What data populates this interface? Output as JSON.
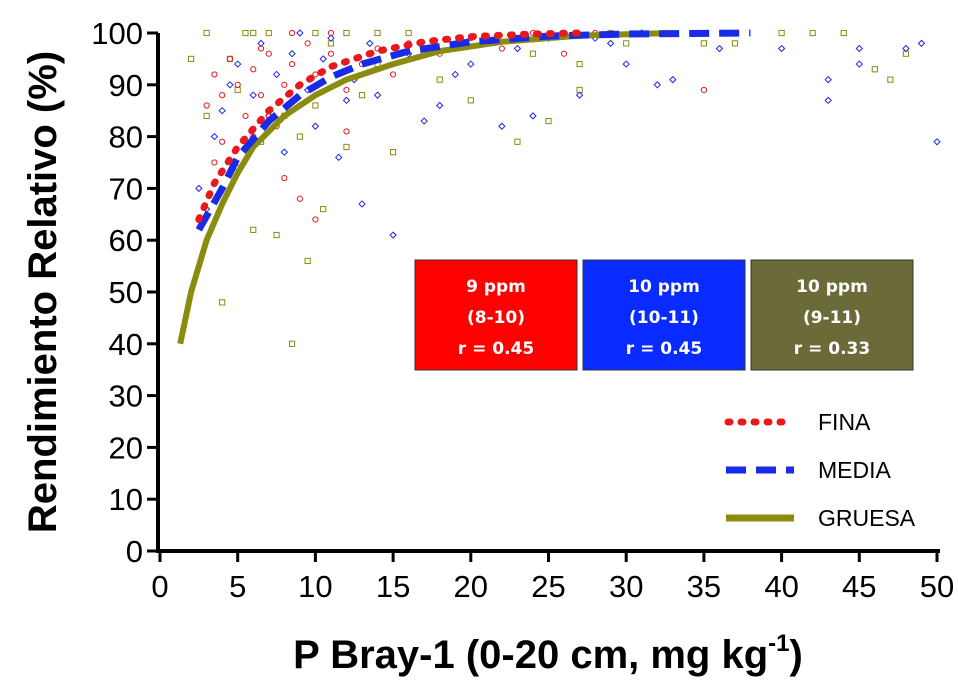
{
  "chart_data": {
    "type": "scatter",
    "xlabel_main": "P Bray-1 (0-20 cm, mg kg",
    "xlabel_sup": "-1",
    "xlabel_end": ")",
    "ylabel": "Rendimiento Relativo (%)",
    "xlim": [
      0,
      50
    ],
    "ylim": [
      0,
      100
    ],
    "x_ticks": [
      "0",
      "5",
      "10",
      "15",
      "20",
      "25",
      "30",
      "35",
      "40",
      "45",
      "50"
    ],
    "y_ticks": [
      "0",
      "10",
      "20",
      "30",
      "40",
      "50",
      "60",
      "70",
      "80",
      "90",
      "100"
    ],
    "grid": false,
    "legend_position": "lower-right",
    "series": [
      {
        "name": "FINA",
        "color": "#e8191d",
        "marker": "circle",
        "line_style": "dotted",
        "curve": [
          [
            2.5,
            64
          ],
          [
            3.5,
            71
          ],
          [
            5,
            78
          ],
          [
            7,
            85
          ],
          [
            9,
            90
          ],
          [
            11,
            93.5
          ],
          [
            14,
            96.5
          ],
          [
            17,
            98.3
          ],
          [
            20,
            99.3
          ],
          [
            24,
            99.8
          ],
          [
            27,
            100
          ]
        ],
        "points": [
          [
            3,
            86
          ],
          [
            3.5,
            92
          ],
          [
            4,
            88
          ],
          [
            4.5,
            95
          ],
          [
            5,
            90
          ],
          [
            5.5,
            84
          ],
          [
            6,
            93
          ],
          [
            6.5,
            88
          ],
          [
            7,
            96
          ],
          [
            7.5,
            82
          ],
          [
            8,
            90
          ],
          [
            8.5,
            94
          ],
          [
            9,
            86
          ],
          [
            9.5,
            98
          ],
          [
            10,
            92
          ],
          [
            11,
            96
          ],
          [
            12,
            89
          ],
          [
            13,
            94
          ],
          [
            14,
            97
          ],
          [
            15,
            92
          ],
          [
            16,
            98
          ],
          [
            18,
            96
          ],
          [
            20,
            99
          ],
          [
            22,
            97
          ],
          [
            24,
            100
          ],
          [
            26,
            96
          ],
          [
            28,
            100
          ],
          [
            35,
            89
          ],
          [
            4,
            79
          ],
          [
            6,
            80
          ],
          [
            8,
            72
          ],
          [
            9,
            68
          ],
          [
            10,
            64
          ],
          [
            5,
            74
          ],
          [
            7,
            84
          ],
          [
            12,
            81
          ],
          [
            3.5,
            75
          ],
          [
            6.5,
            97
          ],
          [
            8.5,
            100
          ],
          [
            11,
            100
          ]
        ]
      },
      {
        "name": "MEDIA",
        "color": "#1a2be8",
        "marker": "diamond",
        "line_style": "dashed",
        "curve": [
          [
            2.5,
            62
          ],
          [
            4,
            70
          ],
          [
            5,
            76
          ],
          [
            7,
            83
          ],
          [
            9,
            88
          ],
          [
            11,
            91.5
          ],
          [
            13,
            94
          ],
          [
            16,
            96.5
          ],
          [
            20,
            98.3
          ],
          [
            25,
            99.4
          ],
          [
            30,
            99.8
          ],
          [
            38,
            100
          ]
        ],
        "points": [
          [
            2.5,
            70
          ],
          [
            3,
            66
          ],
          [
            3.5,
            80
          ],
          [
            4,
            85
          ],
          [
            4.5,
            90
          ],
          [
            5,
            94
          ],
          [
            5.5,
            78
          ],
          [
            6,
            88
          ],
          [
            6.5,
            98
          ],
          [
            7,
            84
          ],
          [
            7.5,
            92
          ],
          [
            8,
            77
          ],
          [
            8.5,
            96
          ],
          [
            9,
            100
          ],
          [
            9.5,
            89
          ],
          [
            10,
            82
          ],
          [
            10.5,
            95
          ],
          [
            11,
            99
          ],
          [
            11.5,
            76
          ],
          [
            12,
            87
          ],
          [
            12.5,
            91
          ],
          [
            13,
            67
          ],
          [
            13.5,
            98
          ],
          [
            14,
            88
          ],
          [
            15,
            61
          ],
          [
            16,
            96
          ],
          [
            17,
            83
          ],
          [
            18,
            86
          ],
          [
            19,
            92
          ],
          [
            20,
            94
          ],
          [
            21,
            98
          ],
          [
            22,
            82
          ],
          [
            23,
            97
          ],
          [
            24,
            84
          ],
          [
            25,
            99
          ],
          [
            26,
            100
          ],
          [
            27,
            88
          ],
          [
            28,
            99
          ],
          [
            30,
            94
          ],
          [
            32,
            90
          ],
          [
            33,
            91
          ],
          [
            36,
            97
          ],
          [
            40,
            97
          ],
          [
            43,
            87
          ],
          [
            43,
            91
          ],
          [
            45,
            94
          ],
          [
            45,
            97
          ],
          [
            48,
            97
          ],
          [
            49,
            98
          ],
          [
            50,
            79
          ],
          [
            29,
            98
          ],
          [
            31,
            100
          ]
        ]
      },
      {
        "name": "GRUESA",
        "color": "#8b8b10",
        "marker": "square",
        "line_style": "solid",
        "curve": [
          [
            1.3,
            40
          ],
          [
            2,
            50
          ],
          [
            3,
            60
          ],
          [
            4,
            67
          ],
          [
            5,
            73
          ],
          [
            6,
            78
          ],
          [
            8,
            84
          ],
          [
            10,
            88
          ],
          [
            12,
            91
          ],
          [
            15,
            94
          ],
          [
            18,
            96.5
          ],
          [
            22,
            98.3
          ],
          [
            27,
            99.5
          ],
          [
            33,
            100
          ]
        ],
        "points": [
          [
            2,
            95
          ],
          [
            3,
            84
          ],
          [
            4,
            48
          ],
          [
            4.5,
            95
          ],
          [
            5,
            89
          ],
          [
            5.5,
            100
          ],
          [
            6,
            62
          ],
          [
            6.5,
            79
          ],
          [
            7,
            100
          ],
          [
            7.5,
            61
          ],
          [
            8,
            84
          ],
          [
            8.5,
            40
          ],
          [
            9,
            80
          ],
          [
            9.5,
            56
          ],
          [
            10,
            86
          ],
          [
            10.5,
            66
          ],
          [
            11,
            98
          ],
          [
            12,
            78
          ],
          [
            13,
            88
          ],
          [
            14,
            94
          ],
          [
            15,
            77
          ],
          [
            16,
            100
          ],
          [
            17,
            96
          ],
          [
            18,
            91
          ],
          [
            20,
            87
          ],
          [
            21,
            99
          ],
          [
            23,
            79
          ],
          [
            24,
            96
          ],
          [
            25,
            83
          ],
          [
            27,
            94
          ],
          [
            27,
            89
          ],
          [
            29,
            100
          ],
          [
            30,
            98
          ],
          [
            35,
            98
          ],
          [
            37,
            98
          ],
          [
            40,
            100
          ],
          [
            42,
            100
          ],
          [
            44,
            100
          ],
          [
            46,
            93
          ],
          [
            47,
            91
          ],
          [
            48,
            96
          ],
          [
            3,
            100
          ],
          [
            6,
            100
          ],
          [
            10,
            100
          ],
          [
            12,
            100
          ],
          [
            14,
            100
          ]
        ]
      }
    ],
    "annotations": [
      {
        "line1": "9 ppm",
        "line2": "(8-10)",
        "line3": "r = 0.45",
        "color": "#ff0000"
      },
      {
        "line1": "10 ppm",
        "line2": "(10-11)",
        "line3": "r = 0.45",
        "color": "#0a2bff"
      },
      {
        "line1": "10 ppm",
        "line2": "(9-11)",
        "line3": "r = 0.33",
        "color": "#6b6b3a"
      }
    ]
  }
}
